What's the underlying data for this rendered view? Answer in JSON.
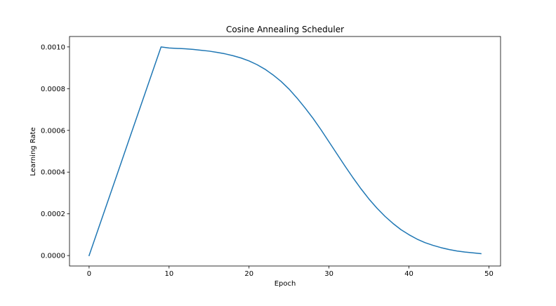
{
  "chart_data": {
    "type": "line",
    "title": "Cosine Annealing Scheduler",
    "xlabel": "Epoch",
    "ylabel": "Learning Rate",
    "xlim": [
      -2.45,
      51.45
    ],
    "ylim": [
      -5e-05,
      0.00105
    ],
    "xticks": [
      0,
      10,
      20,
      30,
      40,
      50
    ],
    "xtick_labels": [
      "0",
      "10",
      "20",
      "30",
      "40",
      "50"
    ],
    "yticks": [
      0,
      0.0002,
      0.0004,
      0.0006,
      0.0008,
      0.001
    ],
    "ytick_labels": [
      "0.0000",
      "0.0002",
      "0.0004",
      "0.0006",
      "0.0008",
      "0.0010"
    ],
    "grid": false,
    "series": [
      {
        "color": "#1f77b4",
        "x": [
          0,
          1,
          2,
          3,
          4,
          5,
          6,
          7,
          8,
          9,
          10,
          11,
          12,
          13,
          14,
          15,
          16,
          17,
          18,
          19,
          20,
          21,
          22,
          23,
          24,
          25,
          26,
          27,
          28,
          29,
          30,
          31,
          32,
          33,
          34,
          35,
          36,
          37,
          38,
          39,
          40,
          41,
          42,
          43,
          44,
          45,
          46,
          47,
          48,
          49
        ],
        "values": [
          0,
          0.000111,
          0.000222,
          0.000333,
          0.000444,
          0.000556,
          0.000667,
          0.000778,
          0.000889,
          0.001,
          0.000995,
          0.000993,
          0.000991,
          0.000988,
          0.000984,
          0.00098,
          0.000974,
          0.000967,
          0.000958,
          0.000947,
          0.000933,
          0.000915,
          0.000893,
          0.000866,
          0.000835,
          0.000798,
          0.000755,
          0.000708,
          0.000658,
          0.000603,
          0.000545,
          0.000487,
          0.000429,
          0.000373,
          0.00032,
          0.000271,
          0.000227,
          0.000188,
          0.000154,
          0.000124,
          0.0001,
          7.9e-05,
          6.2e-05,
          4.9e-05,
          3.8e-05,
          2.9e-05,
          2.2e-05,
          1.7e-05,
          1.3e-05,
          9e-06
        ]
      }
    ]
  }
}
